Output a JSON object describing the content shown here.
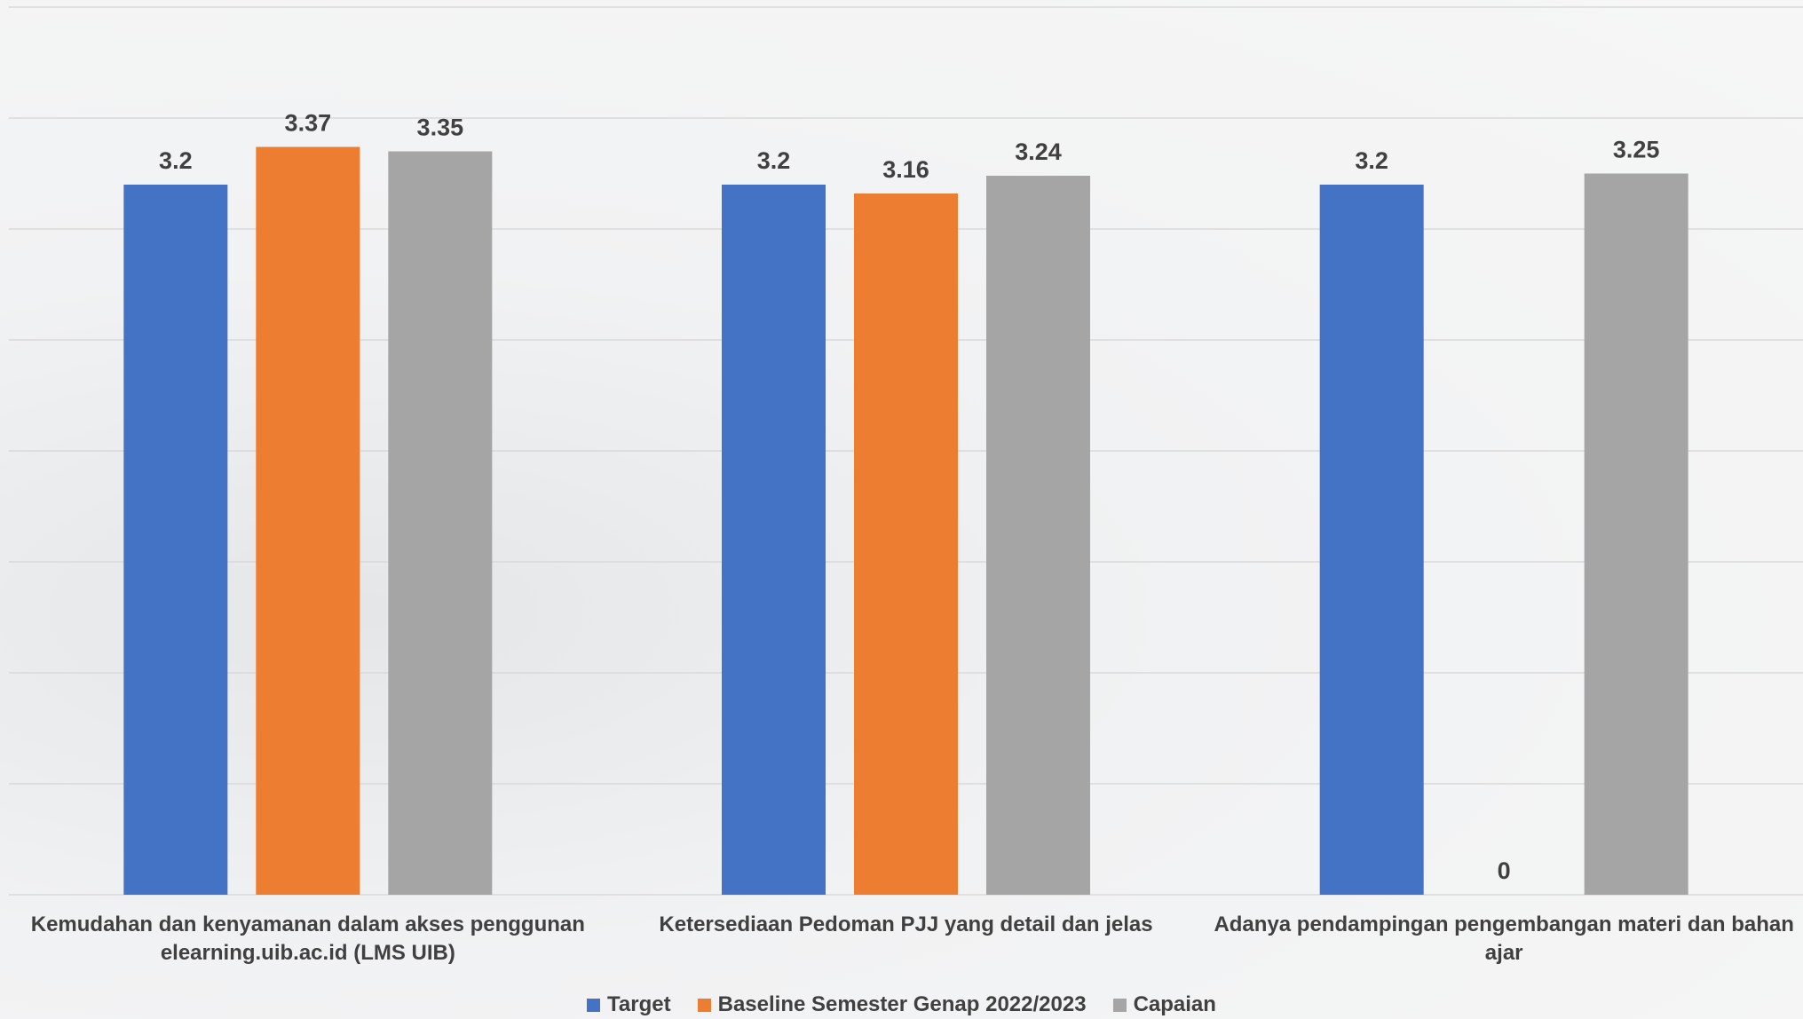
{
  "chart_data": {
    "type": "bar",
    "categories": [
      "Kemudahan dan kenyamanan dalam akses penggunan elearning.uib.ac.id (LMS UIB)",
      "Ketersediaan Pedoman PJJ yang detail dan jelas",
      "Adanya pendampingan pengembangan materi dan bahan ajar"
    ],
    "series": [
      {
        "name": "Target",
        "color": "#4472c4",
        "values": [
          3.2,
          3.2,
          3.2
        ]
      },
      {
        "name": "Baseline Semester Genap 2022/2023",
        "color": "#ed7d31",
        "values": [
          3.37,
          3.16,
          0
        ]
      },
      {
        "name": "Capaian",
        "color": "#a5a5a5",
        "values": [
          3.35,
          3.24,
          3.25
        ]
      }
    ],
    "ylim": [
      0,
      4
    ],
    "yticks": [
      0,
      0.5,
      1,
      1.5,
      2,
      2.5,
      3,
      3.5,
      4
    ],
    "grid": true,
    "legend": "bottom"
  }
}
